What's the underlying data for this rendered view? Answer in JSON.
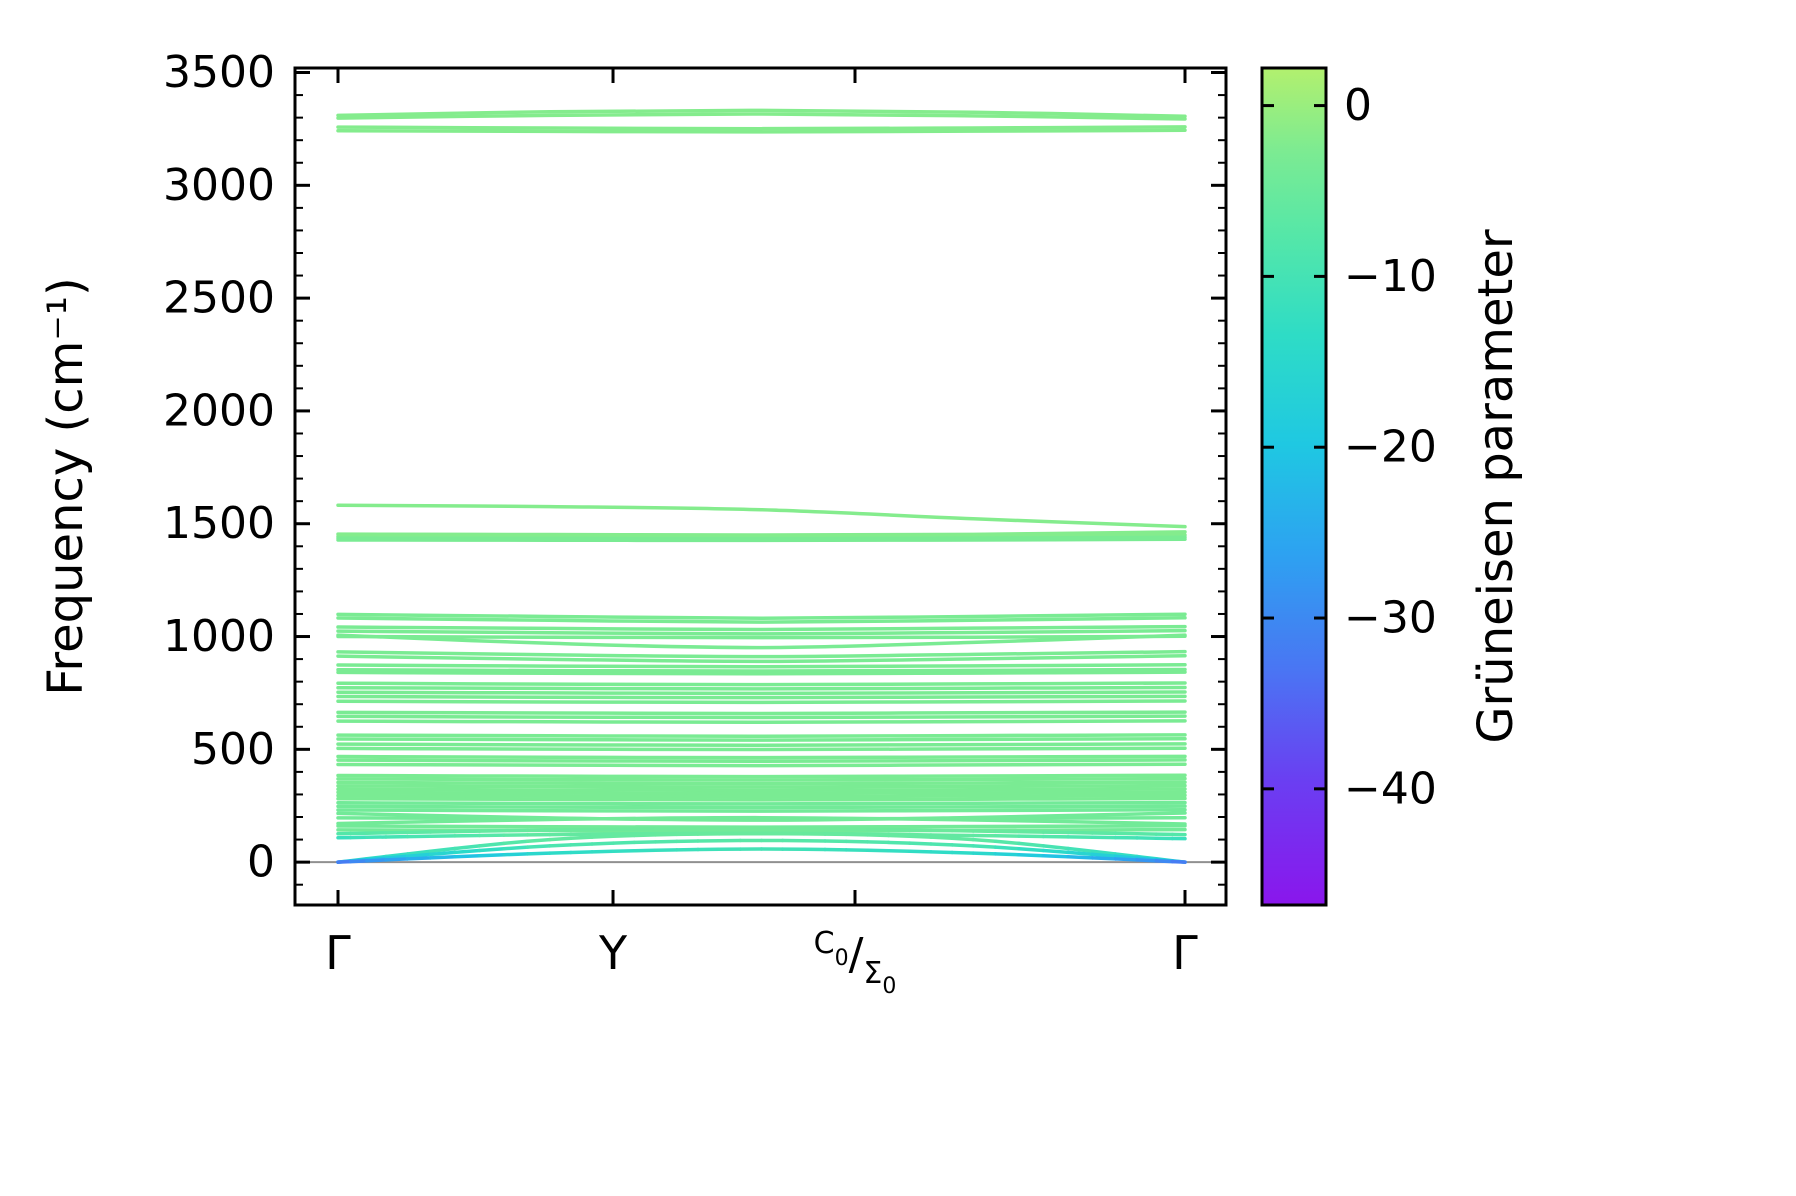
{
  "figure": {
    "background": "#ffffff"
  },
  "chart_data": {
    "type": "line",
    "title": "",
    "description": "Phonon band structure colored by Gruneisen parameter",
    "ylabel": "Frequency (cm⁻¹)",
    "ylim": [
      -190,
      3520
    ],
    "y_ticks": [
      0,
      500,
      1000,
      1500,
      2000,
      2500,
      3000,
      3500
    ],
    "y_minor_step": 100,
    "band_x": [
      0,
      0.25,
      0.5,
      0.75,
      1
    ],
    "x_ticks": [
      {
        "pos": 0.0,
        "label": "Γ"
      },
      {
        "pos": 0.3247,
        "label": "Y"
      },
      {
        "pos": 0.6104,
        "label": "C0/Σ0",
        "fancy": {
          "upper": "C",
          "upper_sub": "0",
          "sep": "/",
          "lower": "Σ",
          "lower_sub": "0"
        }
      },
      {
        "pos": 1.0,
        "label": "Γ"
      }
    ],
    "zero_line": {
      "y": 0,
      "color": "#909090"
    },
    "colorbar": {
      "label": "Grüneisen parameter",
      "vmax": 2.2,
      "vmin": -46.8,
      "ticks": [
        0,
        -10,
        -20,
        -30,
        -40
      ],
      "stops": [
        {
          "t": 0.0,
          "c": "#b2f06e"
        },
        {
          "t": 0.1,
          "c": "#7ceb92"
        },
        {
          "t": 0.2,
          "c": "#55e7a8"
        },
        {
          "t": 0.32,
          "c": "#2edcc6"
        },
        {
          "t": 0.45,
          "c": "#1fc8e2"
        },
        {
          "t": 0.58,
          "c": "#2da2f1"
        },
        {
          "t": 0.72,
          "c": "#4a75f3"
        },
        {
          "t": 0.85,
          "c": "#6a3ff2"
        },
        {
          "t": 1.0,
          "c": "#8a16ec"
        }
      ]
    },
    "bands": [
      {
        "y": [
          3310,
          3326,
          3332,
          3324,
          3306
        ],
        "g": -2
      },
      {
        "y": [
          3298,
          3310,
          3316,
          3308,
          3294
        ],
        "g": -2
      },
      {
        "y": [
          3258,
          3254,
          3251,
          3254,
          3259
        ],
        "g": -2
      },
      {
        "y": [
          3242,
          3239,
          3237,
          3240,
          3244
        ],
        "g": -2
      },
      {
        "y": [
          1582,
          1576,
          1562,
          1522,
          1487
        ],
        "g": -2
      },
      {
        "y": [
          1454,
          1452,
          1450,
          1453,
          1464
        ],
        "g": -2
      },
      {
        "y": [
          1444,
          1443,
          1442,
          1444,
          1450
        ],
        "g": -2
      },
      {
        "y": [
          1436,
          1435,
          1434,
          1436,
          1440
        ],
        "g": -3
      },
      {
        "y": [
          1428,
          1427,
          1426,
          1428,
          1431
        ],
        "g": -3
      },
      {
        "y": [
          1098,
          1089,
          1081,
          1089,
          1099
        ],
        "g": -3
      },
      {
        "y": [
          1082,
          1072,
          1064,
          1072,
          1083
        ],
        "g": -3
      },
      {
        "y": [
          1042,
          1036,
          1031,
          1037,
          1044
        ],
        "g": -3
      },
      {
        "y": [
          1024,
          1017,
          1012,
          1018,
          1026
        ],
        "g": -3
      },
      {
        "y": [
          1006,
          970,
          951,
          974,
          1006
        ],
        "g": -3
      },
      {
        "y": [
          1000,
          997,
          995,
          997,
          1001
        ],
        "g": -3
      },
      {
        "y": [
          932,
          919,
          911,
          921,
          933
        ],
        "g": -3
      },
      {
        "y": [
          913,
          899,
          890,
          901,
          915
        ],
        "g": -3
      },
      {
        "y": [
          874,
          869,
          866,
          870,
          875
        ],
        "g": -3
      },
      {
        "y": [
          853,
          849,
          847,
          850,
          854
        ],
        "g": -3
      },
      {
        "y": [
          841,
          837,
          835,
          838,
          842
        ],
        "g": -3
      },
      {
        "y": [
          793,
          789,
          787,
          790,
          794
        ],
        "g": -3
      },
      {
        "y": [
          773,
          770,
          768,
          771,
          774
        ],
        "g": -3
      },
      {
        "y": [
          753,
          750,
          748,
          751,
          754
        ],
        "g": -3
      },
      {
        "y": [
          734,
          731,
          729,
          732,
          735
        ],
        "g": -3
      },
      {
        "y": [
          713,
          710,
          708,
          711,
          714
        ],
        "g": -3
      },
      {
        "y": [
          664,
          661,
          659,
          662,
          665
        ],
        "g": -3
      },
      {
        "y": [
          646,
          643,
          641,
          644,
          647
        ],
        "g": -3
      },
      {
        "y": [
          625,
          622,
          620,
          623,
          626
        ],
        "g": -3
      },
      {
        "y": [
          563,
          560,
          558,
          561,
          564
        ],
        "g": -3
      },
      {
        "y": [
          546,
          543,
          541,
          544,
          547
        ],
        "g": -3
      },
      {
        "y": [
          523,
          520,
          518,
          521,
          524
        ],
        "g": -3
      },
      {
        "y": [
          504,
          501,
          499,
          502,
          505
        ],
        "g": -3
      },
      {
        "y": [
          468,
          465,
          463,
          466,
          469
        ],
        "g": -3
      },
      {
        "y": [
          452,
          449,
          447,
          450,
          453
        ],
        "g": -3
      },
      {
        "y": [
          433,
          430,
          428,
          431,
          434
        ],
        "g": -3
      },
      {
        "y": [
          384,
          381,
          379,
          382,
          385
        ],
        "g": -3
      },
      {
        "y": [
          369,
          366,
          364,
          367,
          370
        ],
        "g": -3
      },
      {
        "y": [
          353,
          350,
          348,
          351,
          354
        ],
        "g": -3
      },
      {
        "y": [
          338,
          335,
          333,
          336,
          339
        ],
        "g": -3
      },
      {
        "y": [
          323,
          320,
          318,
          321,
          324
        ],
        "g": -3
      },
      {
        "y": [
          309,
          306,
          304,
          307,
          310
        ],
        "g": -3
      },
      {
        "y": [
          295,
          292,
          290,
          293,
          296
        ],
        "g": -3
      },
      {
        "y": [
          281,
          278,
          276,
          279,
          282
        ],
        "g": -3
      },
      {
        "y": [
          263,
          260,
          258,
          261,
          264
        ],
        "g": -4
      },
      {
        "y": [
          247,
          244,
          242,
          245,
          248
        ],
        "g": -4
      },
      {
        "y": [
          231,
          228,
          226,
          229,
          232
        ],
        "g": -4
      },
      {
        "y": [
          216,
          196,
          186,
          198,
          218
        ],
        "g": -4
      },
      {
        "y": [
          171,
          189,
          197,
          187,
          169
        ],
        "g": -4
      },
      {
        "y": [
          196,
          193,
          191,
          194,
          197
        ],
        "g": -4
      },
      {
        "y": [
          160,
          157,
          155,
          158,
          161
        ],
        "g": -4
      },
      {
        "y": [
          143,
          140,
          138,
          141,
          144
        ],
        "g": -4
      },
      {
        "y": [
          126,
          142,
          150,
          138,
          122
        ],
        "g": [
          -8,
          -5,
          -4,
          -5,
          -8
        ]
      },
      {
        "y": [
          108,
          122,
          128,
          118,
          104
        ],
        "g": [
          -12,
          -6,
          -5,
          -6,
          -12
        ]
      },
      {
        "y": [
          0,
          100,
          126,
          100,
          0
        ],
        "g": [
          -16,
          -6,
          -5,
          -6,
          -16
        ]
      },
      {
        "y": [
          0,
          72,
          96,
          72,
          0
        ],
        "g": [
          -24,
          -9,
          -7,
          -9,
          -24
        ]
      },
      {
        "y": [
          0,
          40,
          58,
          40,
          0
        ],
        "g": [
          -33,
          -14,
          -10,
          -14,
          -33
        ]
      }
    ]
  }
}
